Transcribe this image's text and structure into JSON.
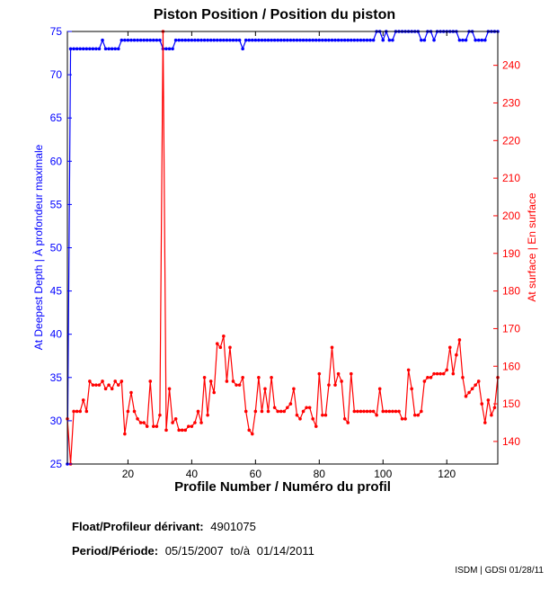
{
  "title": "Piston Position / Position du piston",
  "xlabel": "Profile Number / Numéro du profil",
  "ylabel_left": "At Deepest Depth | À profondeur maximale",
  "ylabel_right": "At surface | En surface",
  "float_label": "Float/Profileur dérivant:",
  "float_id": "4901075",
  "period_label": "Period/Période:",
  "period_start": "05/15/2007",
  "period_sep": "to/à",
  "period_end": "01/14/2011",
  "credit": "ISDM | GDSI 01/28/11",
  "colors": {
    "deepest": "#0000ff",
    "surface": "#ff0000"
  },
  "chart_data": {
    "type": "line",
    "xlim": [
      1,
      136
    ],
    "x_ticks": [
      20,
      40,
      60,
      80,
      100,
      120
    ],
    "left_axis": {
      "ylim": [
        25,
        75
      ],
      "ticks": [
        25,
        30,
        35,
        40,
        45,
        50,
        55,
        60,
        65,
        70,
        75
      ]
    },
    "right_axis": {
      "ylim": [
        134,
        249
      ],
      "ticks": [
        140,
        150,
        160,
        170,
        180,
        190,
        200,
        210,
        220,
        230,
        240
      ]
    },
    "series": [
      {
        "name": "At Deepest Depth | À profondeur maximale",
        "axis": "left",
        "color": "#0000ff",
        "marker": "dot",
        "x_start": 1,
        "values": [
          25,
          73,
          73,
          73,
          73,
          73,
          73,
          73,
          73,
          73,
          73,
          74,
          73,
          73,
          73,
          73,
          73,
          74,
          74,
          74,
          74,
          74,
          74,
          74,
          74,
          74,
          74,
          74,
          74,
          74,
          73,
          73,
          73,
          73,
          74,
          74,
          74,
          74,
          74,
          74,
          74,
          74,
          74,
          74,
          74,
          74,
          74,
          74,
          74,
          74,
          74,
          74,
          74,
          74,
          74,
          73,
          74,
          74,
          74,
          74,
          74,
          74,
          74,
          74,
          74,
          74,
          74,
          74,
          74,
          74,
          74,
          74,
          74,
          74,
          74,
          74,
          74,
          74,
          74,
          74,
          74,
          74,
          74,
          74,
          74,
          74,
          74,
          74,
          74,
          74,
          74,
          74,
          74,
          74,
          74,
          74,
          74,
          75,
          75,
          74,
          75,
          74,
          74,
          75,
          75,
          75,
          75,
          75,
          75,
          75,
          75,
          74,
          74,
          75,
          75,
          74,
          75,
          75,
          75,
          75,
          75,
          75,
          75,
          74,
          74,
          74,
          75,
          75,
          74,
          74,
          74,
          74,
          75,
          75,
          75,
          75
        ]
      },
      {
        "name": "At surface | En surface",
        "axis": "right",
        "color": "#ff0000",
        "marker": "dot",
        "x_start": 1,
        "values": [
          146,
          134,
          148,
          148,
          148,
          151,
          148,
          156,
          155,
          155,
          155,
          156,
          154,
          155,
          154,
          156,
          155,
          156,
          142,
          148,
          153,
          148,
          146,
          145,
          145,
          144,
          156,
          144,
          144,
          147,
          249,
          143,
          154,
          145,
          146,
          143,
          143,
          143,
          144,
          144,
          145,
          148,
          145,
          157,
          147,
          156,
          153,
          166,
          165,
          168,
          156,
          165,
          156,
          155,
          155,
          157,
          148,
          143,
          142,
          148,
          157,
          148,
          154,
          148,
          157,
          149,
          148,
          148,
          148,
          149,
          150,
          154,
          147,
          146,
          148,
          149,
          149,
          146,
          144,
          158,
          147,
          147,
          155,
          165,
          155,
          158,
          156,
          146,
          145,
          158,
          148,
          148,
          148,
          148,
          148,
          148,
          148,
          147,
          154,
          148,
          148,
          148,
          148,
          148,
          148,
          146,
          146,
          159,
          154,
          147,
          147,
          148,
          156,
          157,
          157,
          158,
          158,
          158,
          158,
          159,
          165,
          158,
          163,
          167,
          157,
          152,
          153,
          154,
          155,
          156,
          150,
          145,
          151,
          147,
          149,
          157
        ]
      }
    ]
  }
}
